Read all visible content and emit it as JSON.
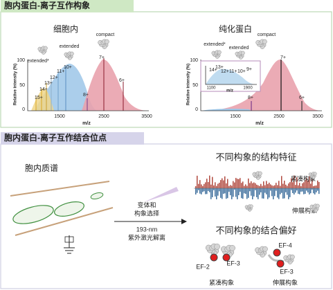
{
  "top_panel": {
    "header": "胞内蛋白-离子互作构象",
    "left_spectrum": {
      "title": "细胞内",
      "y_label": "Relative intensity (%)",
      "x_label": "m/z",
      "y_ticks": [
        "100",
        "50",
        "0"
      ],
      "x_ticks": [
        "1500",
        "2500",
        "3500"
      ],
      "annotations": [
        "compact",
        "extended",
        "extended*"
      ],
      "charge_states": [
        "15+",
        "14+",
        "13+",
        "12+",
        "11+",
        "10+",
        "8+",
        "7+",
        "6+"
      ]
    },
    "right_spectrum": {
      "title": "纯化蛋白",
      "y_label": "Relative intensity (%)",
      "x_label": "m/z",
      "y_ticks": [
        "100",
        "50",
        "0"
      ],
      "x_ticks": [
        "1500",
        "2500",
        "3500"
      ],
      "annotations": [
        "compact",
        "extended",
        "extended*"
      ],
      "charge_states": [
        "8+",
        "7+",
        "6+"
      ],
      "inset": {
        "x_label": "m/z",
        "x_ticks": [
          "1100",
          "1900"
        ],
        "charge_states": [
          "14+",
          "13+",
          "12+",
          "11+",
          "10+",
          "9+"
        ]
      }
    }
  },
  "bottom_panel": {
    "header": "胞内蛋白-离子互作结合位点",
    "ms_label": "胞内质谱",
    "arrow_above": [
      "变体和",
      "构象选择"
    ],
    "arrow_below": [
      "193-nm",
      "紫外激光解离"
    ],
    "structure_title": "不同构象的结构特征",
    "structure_labels": [
      "紧凑构象",
      "伸展构象"
    ],
    "binding_title": "不同构象的结合偏好",
    "compact_sites": [
      "EF-2",
      "EF-3"
    ],
    "extended_sites": [
      "EF-4",
      "EF-3"
    ],
    "binding_labels": [
      "紧凑构象",
      "伸展构象"
    ]
  }
}
